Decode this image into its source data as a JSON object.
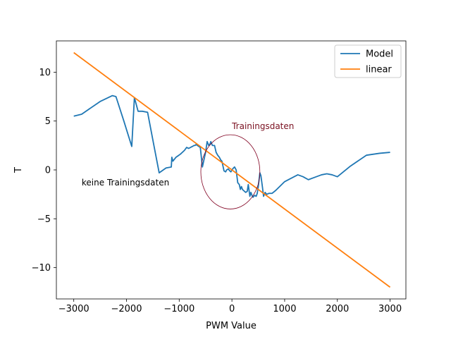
{
  "chart_data": {
    "type": "line",
    "xlabel": "PWM Value",
    "ylabel": "T",
    "xlim": [
      -3330,
      3300
    ],
    "ylim": [
      -13.2,
      13.2
    ],
    "xticks": [
      -3000,
      -2000,
      -1000,
      0,
      1000,
      2000,
      3000
    ],
    "xtick_labels": [
      "−3000",
      "−2000",
      "−1000",
      "0",
      "1000",
      "2000",
      "3000"
    ],
    "yticks": [
      -10,
      -5,
      0,
      5,
      10
    ],
    "ytick_labels": [
      "−10",
      "−5",
      "0",
      "5",
      "10"
    ],
    "grid": false,
    "legend": {
      "position": "top-right",
      "entries": [
        "Model",
        "linear"
      ]
    },
    "series": [
      {
        "name": "Model",
        "color": "#1f77b4",
        "x": [
          -3000,
          -2850,
          -2500,
          -2270,
          -2200,
          -2050,
          -1900,
          -1850,
          -1820,
          -1780,
          -1700,
          -1600,
          -1480,
          -1380,
          -1250,
          -1150,
          -1140,
          -1120,
          -1060,
          -980,
          -900,
          -860,
          -820,
          -750,
          -720,
          -700,
          -680,
          -600,
          -560,
          -500,
          -470,
          -440,
          -420,
          -400,
          -370,
          -330,
          -300,
          -270,
          -240,
          -210,
          -190,
          -150,
          -120,
          -100,
          -70,
          -40,
          -20,
          0,
          30,
          50,
          80,
          110,
          140,
          160,
          180,
          200,
          220,
          260,
          290,
          310,
          340,
          360,
          380,
          400,
          430,
          460,
          480,
          500,
          530,
          550,
          580,
          600,
          630,
          660,
          700,
          760,
          830,
          1000,
          1250,
          1350,
          1450,
          1600,
          1700,
          1800,
          1900,
          2000,
          2250,
          2550,
          2800,
          3000
        ],
        "y": [
          5.5,
          5.7,
          7.0,
          7.6,
          7.5,
          5.0,
          2.4,
          7.4,
          6.8,
          6.0,
          6.0,
          5.9,
          2.5,
          -0.3,
          0.2,
          0.3,
          1.3,
          0.9,
          1.3,
          1.6,
          2.0,
          2.3,
          2.2,
          2.4,
          2.5,
          2.5,
          2.6,
          2.3,
          0.3,
          1.8,
          2.9,
          2.5,
          2.6,
          2.9,
          2.5,
          2.5,
          1.8,
          1.5,
          1.3,
          1.0,
          0.9,
          -0.1,
          -0.2,
          0.0,
          0.1,
          -0.1,
          -0.2,
          0.0,
          0.2,
          0.3,
          0.0,
          -1.3,
          -1.5,
          -2.0,
          -1.7,
          -2.0,
          -2.1,
          -2.3,
          -2.2,
          -1.5,
          -2.7,
          -2.3,
          -2.6,
          -2.8,
          -2.6,
          -2.7,
          -2.4,
          -1.7,
          -0.3,
          -0.6,
          -1.8,
          -2.7,
          -2.3,
          -2.5,
          -2.4,
          -2.4,
          -2.1,
          -1.2,
          -0.5,
          -0.7,
          -1.0,
          -0.7,
          -0.5,
          -0.4,
          -0.5,
          -0.7,
          0.4,
          1.5,
          1.7,
          1.8
        ]
      },
      {
        "name": "linear",
        "color": "#ff7f0e",
        "x": [
          -3000,
          3000
        ],
        "y": [
          12.0,
          -12.0
        ]
      }
    ],
    "annotations": [
      {
        "text": "Trainingsdaten",
        "x": 0,
        "y": 4.2,
        "color": "#7a1020"
      },
      {
        "text": "keine Trainingsdaten",
        "x": -2850,
        "y": -1.6,
        "color": "#000000"
      }
    ],
    "ellipse": {
      "cx": -30,
      "cy": -0.2,
      "rx": 560,
      "ry": 3.8,
      "color": "#800020"
    }
  }
}
